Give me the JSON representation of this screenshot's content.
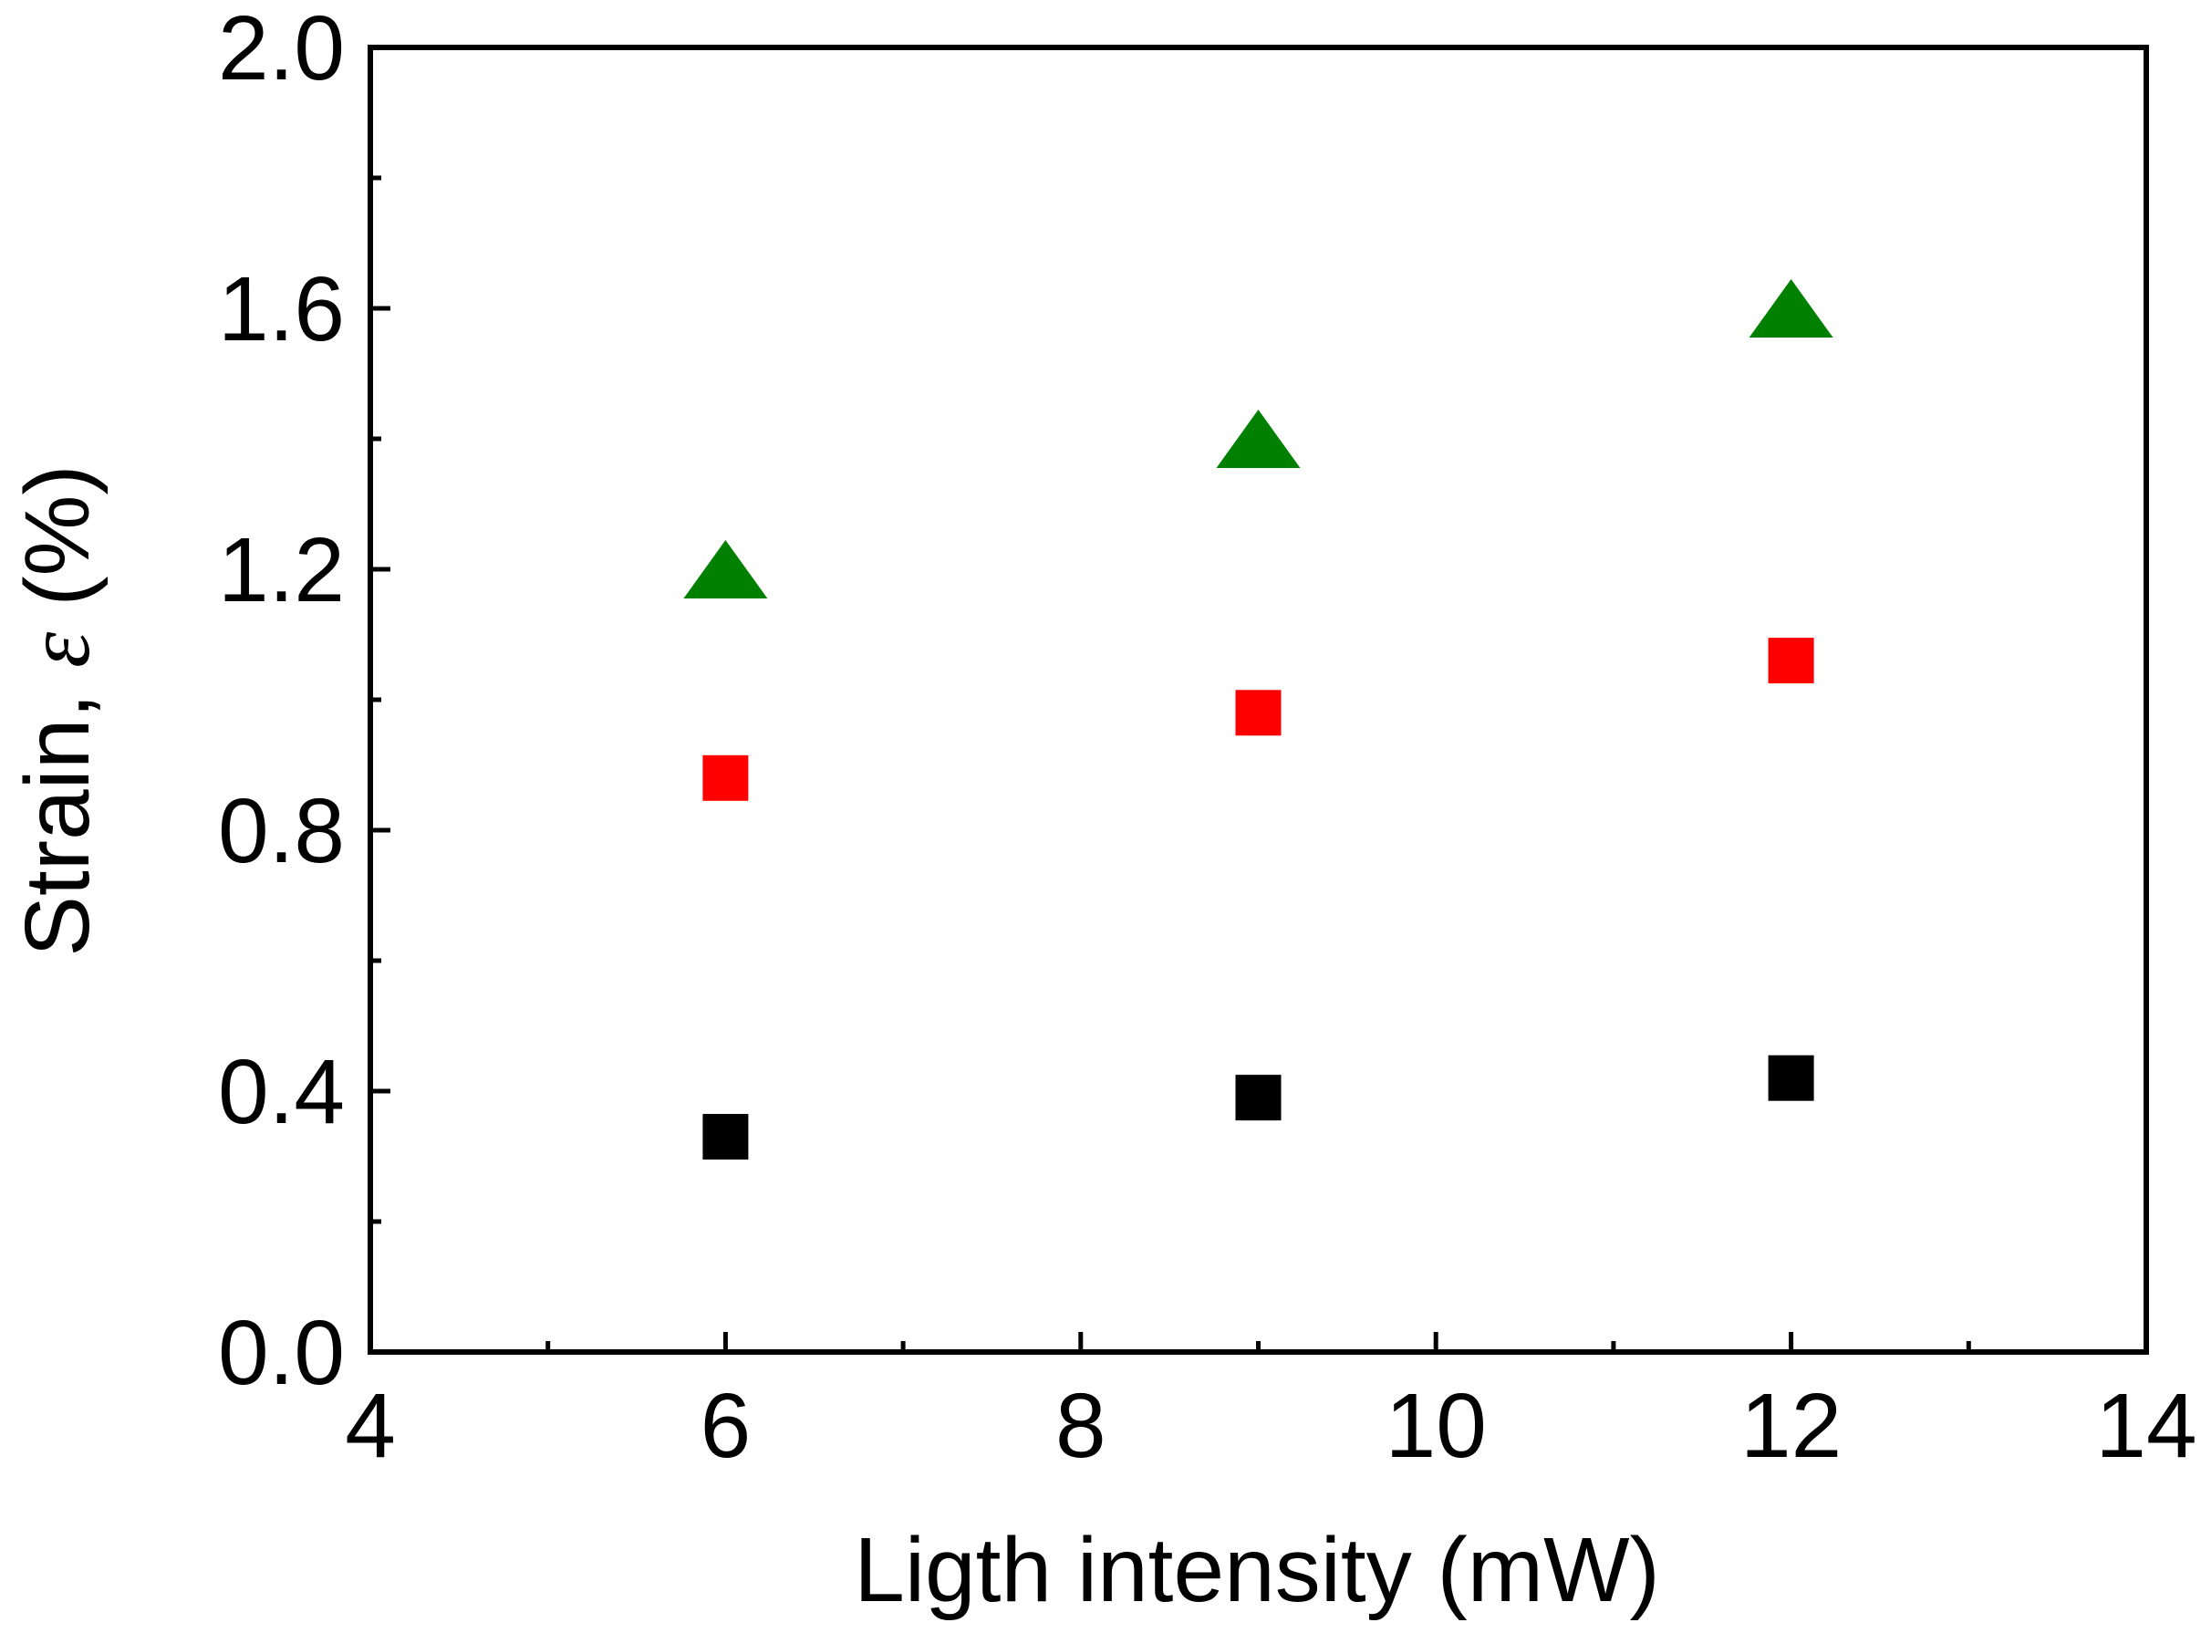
{
  "chart_data": {
    "type": "scatter",
    "title": "",
    "xlabel": "Ligth intensity (mW)",
    "ylabel_prefix": "Strain, ",
    "ylabel_symbol": "ε",
    "ylabel_suffix": " (%)",
    "xlim": [
      4,
      14
    ],
    "ylim": [
      0.0,
      2.0
    ],
    "x_major_ticks": [
      4,
      6,
      8,
      10,
      12,
      14
    ],
    "x_tick_labels": [
      "4",
      "6",
      "8",
      "10",
      "12",
      "14"
    ],
    "x_minor_ticks": [
      5,
      7,
      9,
      11,
      13
    ],
    "y_major_ticks": [
      0.0,
      0.4,
      0.8,
      1.2,
      1.6,
      2.0
    ],
    "y_tick_labels": [
      "0.0",
      "0.4",
      "0.8",
      "1.2",
      "1.6",
      "2.0"
    ],
    "y_minor_ticks": [
      0.2,
      0.6,
      1.0,
      1.4,
      1.8
    ],
    "grid": false,
    "legend": "none",
    "series": [
      {
        "name": "black-squares",
        "marker": "square",
        "color": "#000000",
        "x": [
          6,
          9,
          12
        ],
        "y": [
          0.33,
          0.39,
          0.42
        ]
      },
      {
        "name": "red-squares",
        "marker": "square",
        "color": "#ff0000",
        "x": [
          6,
          9,
          12
        ],
        "y": [
          0.88,
          0.98,
          1.06
        ]
      },
      {
        "name": "green-triangles",
        "marker": "triangle",
        "color": "#008000",
        "x": [
          6,
          9,
          12
        ],
        "y": [
          1.2,
          1.4,
          1.6
        ]
      }
    ]
  }
}
